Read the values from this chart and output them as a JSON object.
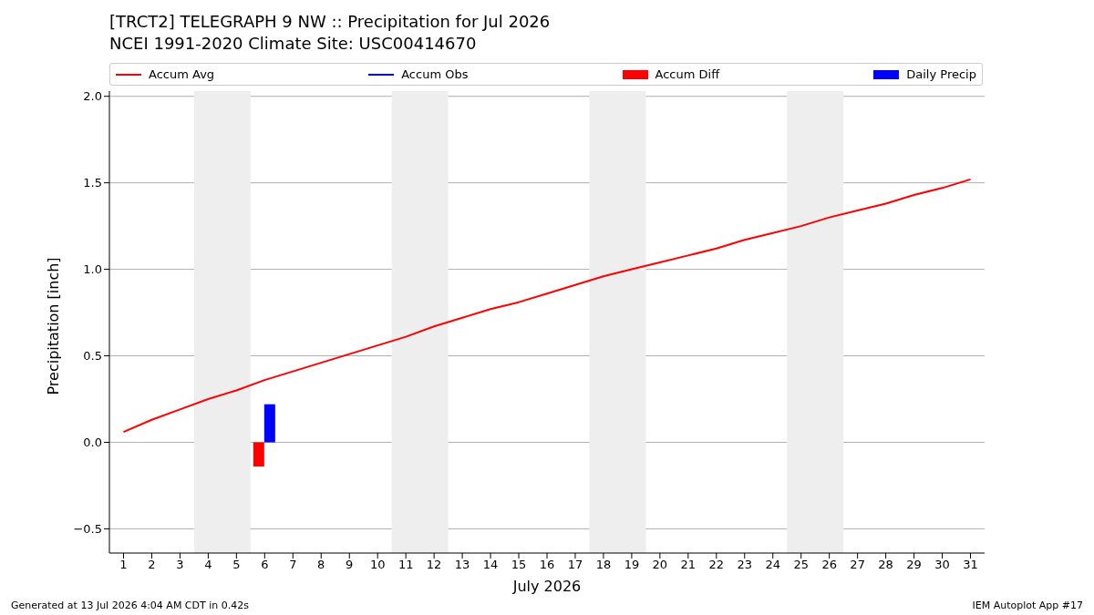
{
  "chart_data": {
    "type": "line",
    "title": "[TRCT2] TELEGRAPH 9 NW :: Precipitation for Jul 2026",
    "subtitle": "NCEI 1991-2020 Climate Site: USC00414670",
    "xlabel": "July 2026",
    "ylabel": "Precipitation [inch]",
    "x": [
      1,
      2,
      3,
      4,
      5,
      6,
      7,
      8,
      9,
      10,
      11,
      12,
      13,
      14,
      15,
      16,
      17,
      18,
      19,
      20,
      21,
      22,
      23,
      24,
      25,
      26,
      27,
      28,
      29,
      30,
      31
    ],
    "series": [
      {
        "name": "Accum Avg",
        "color": "#ff0000",
        "values": [
          0.06,
          0.13,
          0.19,
          0.25,
          0.3,
          0.36,
          0.41,
          0.46,
          0.51,
          0.56,
          0.61,
          0.67,
          0.72,
          0.77,
          0.81,
          0.86,
          0.91,
          0.96,
          1.0,
          1.04,
          1.08,
          1.12,
          1.17,
          1.21,
          1.25,
          1.3,
          1.34,
          1.38,
          1.43,
          1.47,
          1.52
        ]
      },
      {
        "name": "Accum Obs",
        "color": "#0000ff",
        "values": [
          null,
          null,
          null,
          null,
          null,
          null,
          null,
          null,
          null,
          null,
          null,
          null,
          null,
          null,
          null,
          null,
          null,
          null,
          null,
          null,
          null,
          null,
          null,
          null,
          null,
          null,
          null,
          null,
          null,
          null,
          null
        ]
      },
      {
        "name": "Accum Diff",
        "type": "bar",
        "color": "#ff0000",
        "values": [
          null,
          null,
          null,
          null,
          null,
          -0.14,
          null,
          null,
          null,
          null,
          null,
          null,
          null,
          null,
          null,
          null,
          null,
          null,
          null,
          null,
          null,
          null,
          null,
          null,
          null,
          null,
          null,
          null,
          null,
          null,
          null
        ]
      },
      {
        "name": "Daily Precip",
        "type": "bar",
        "color": "#0000ff",
        "values": [
          null,
          null,
          null,
          null,
          null,
          0.22,
          null,
          null,
          null,
          null,
          null,
          null,
          null,
          null,
          null,
          null,
          null,
          null,
          null,
          null,
          null,
          null,
          null,
          null,
          null,
          null,
          null,
          null,
          null,
          null,
          null
        ]
      }
    ],
    "xlim": [
      0.5,
      31.5
    ],
    "xticks": [
      1,
      2,
      3,
      4,
      5,
      6,
      7,
      8,
      9,
      10,
      11,
      12,
      13,
      14,
      15,
      16,
      17,
      18,
      19,
      20,
      21,
      22,
      23,
      24,
      25,
      26,
      27,
      28,
      29,
      30,
      31
    ],
    "ylim": [
      -0.64,
      2.03
    ],
    "yticks": [
      {
        "value": -0.5,
        "label": "−0.5"
      },
      {
        "value": 0,
        "label": "0.0"
      },
      0.5,
      {
        "value": 1,
        "label": "1.0"
      },
      1.5,
      {
        "value": 2,
        "label": "2.0"
      }
    ],
    "bands": [
      {
        "axis": "x",
        "from": 3.5,
        "to": 5.5,
        "color": "#eeeeee"
      },
      {
        "axis": "x",
        "from": 10.5,
        "to": 12.5,
        "color": "#eeeeee"
      },
      {
        "axis": "x",
        "from": 17.5,
        "to": 19.5,
        "color": "#eeeeee"
      },
      {
        "axis": "x",
        "from": 24.5,
        "to": 26.5,
        "color": "#eeeeee"
      }
    ],
    "grid": "y",
    "legend": "top",
    "marker": "none",
    "annotations": [
      "Generated at 13 Jul 2026 4:04 AM CDT in 0.42s",
      "IEM Autoplot App #17"
    ]
  }
}
